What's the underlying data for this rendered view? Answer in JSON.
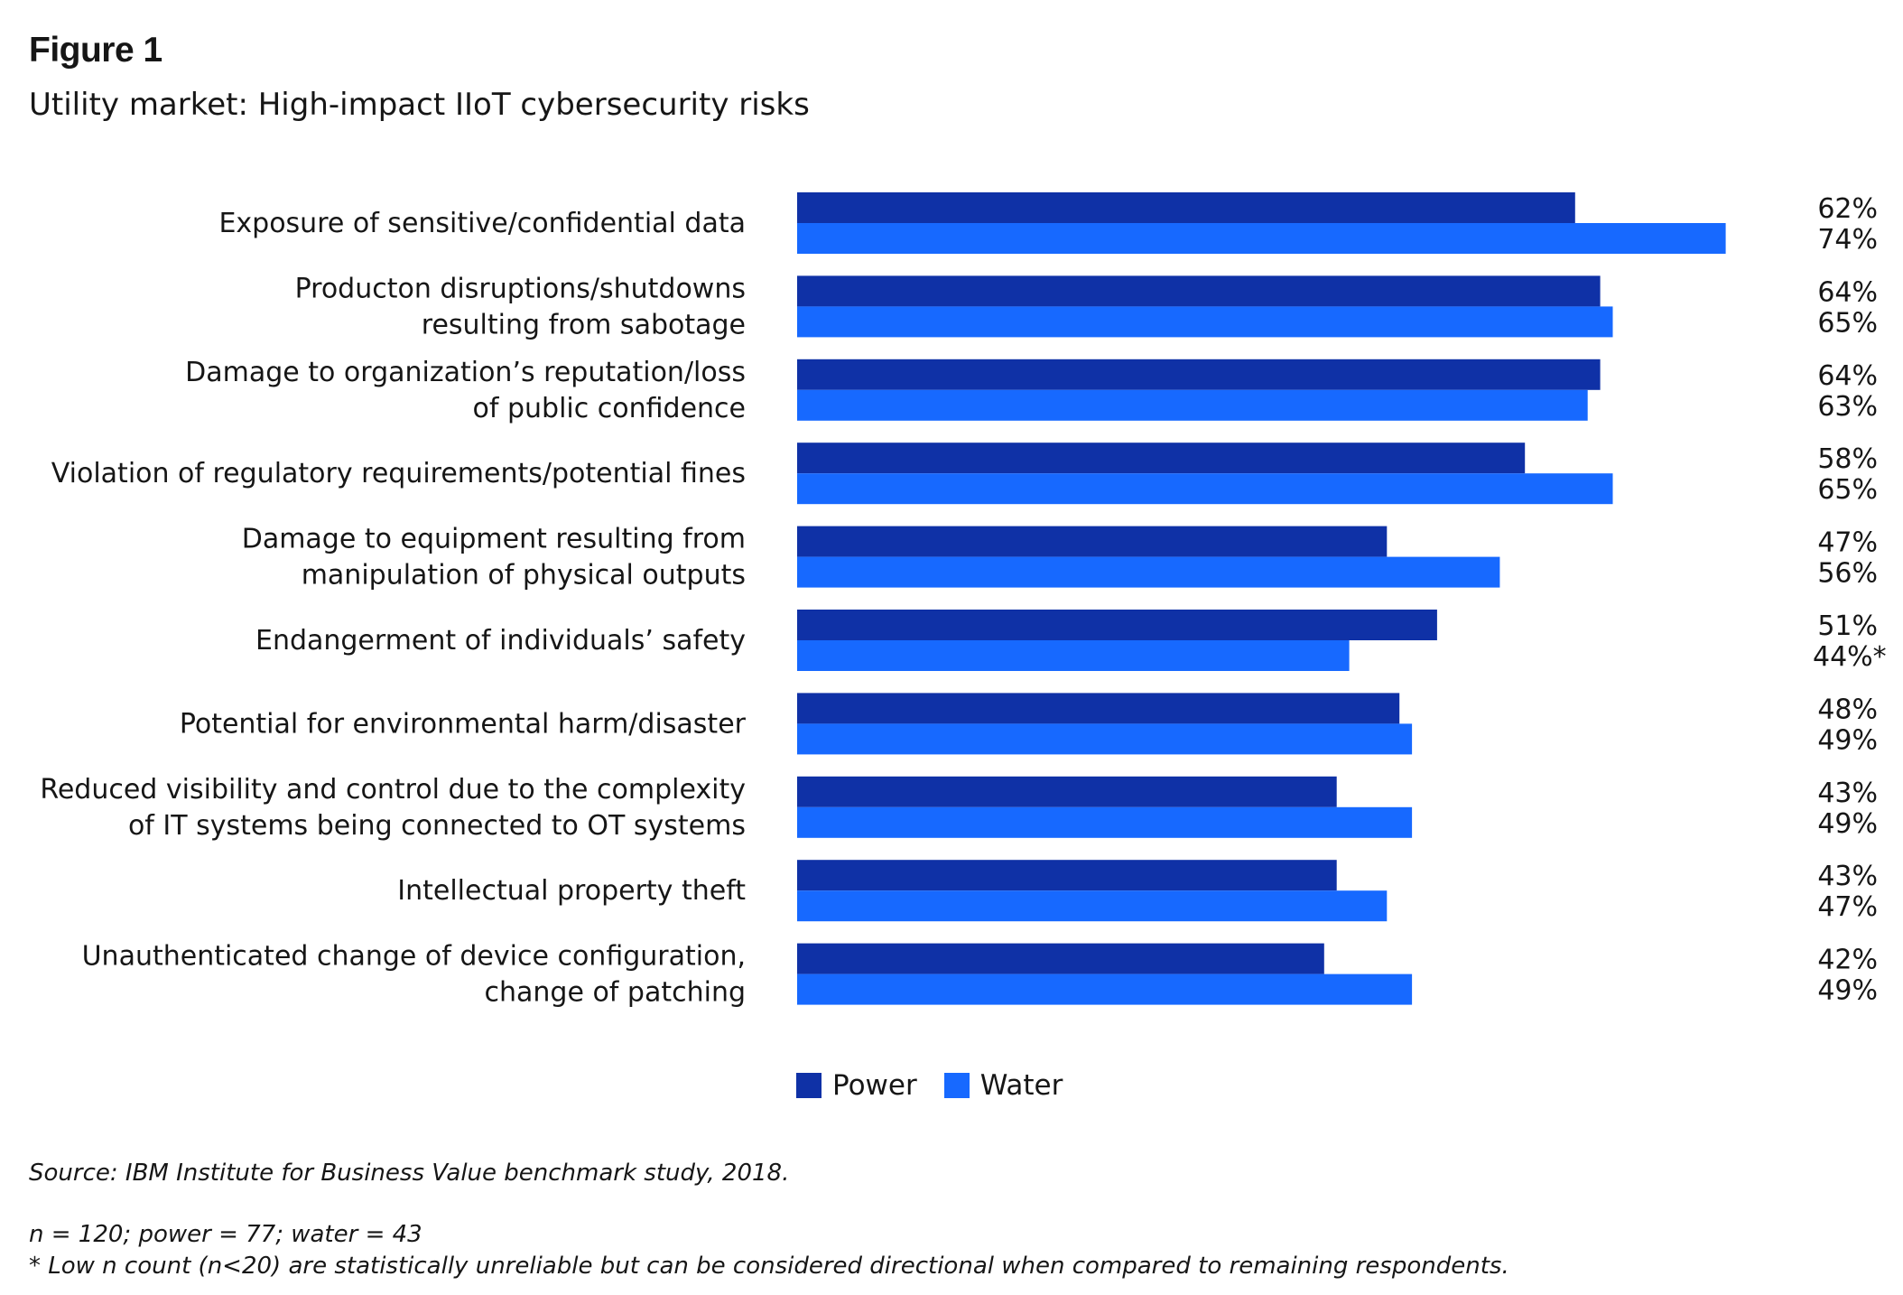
{
  "figure_label": "Figure 1",
  "subtitle": "Utility market: High-impact IIoT cybersecurity risks",
  "colors": {
    "power": "#0f31a6",
    "water": "#1769ff"
  },
  "chart_data": {
    "type": "bar",
    "orientation": "horizontal",
    "title": "Utility market: High-impact IIoT cybersecurity risks",
    "categories": [
      [
        "Exposure of sensitive/confidential data"
      ],
      [
        "Producton disruptions/shutdowns",
        "resulting from sabotage"
      ],
      [
        "Damage to organization’s reputation/loss",
        "of public confidence"
      ],
      [
        "Violation of regulatory requirements/potential fines"
      ],
      [
        "Damage to equipment resulting from",
        "manipulation of physical outputs"
      ],
      [
        "Endangerment of individuals’ safety"
      ],
      [
        "Potential for environmental harm/disaster"
      ],
      [
        "Reduced visibility and control due to the complexity",
        "of IT systems being connected to OT systems"
      ],
      [
        "Intellectual property theft"
      ],
      [
        "Unauthenticated change of device configuration,",
        "change of patching"
      ]
    ],
    "series": [
      {
        "name": "Power",
        "values": [
          62,
          64,
          64,
          58,
          47,
          51,
          48,
          43,
          43,
          42
        ],
        "labels": [
          "62%",
          "64%",
          "64%",
          "58%",
          "47%",
          "51%",
          "48%",
          "43%",
          "43%",
          "42%"
        ]
      },
      {
        "name": "Water",
        "values": [
          74,
          65,
          63,
          65,
          56,
          44,
          49,
          49,
          47,
          49
        ],
        "labels": [
          "74%",
          "65%",
          "63%",
          "65%",
          "56%",
          "44%*",
          "49%",
          "49%",
          "47%",
          "49%"
        ]
      }
    ],
    "xlim": [
      0,
      100
    ],
    "grid": false,
    "legend_position": "bottom"
  },
  "legend": [
    {
      "label": "Power"
    },
    {
      "label": "Water"
    }
  ],
  "source": "Source: IBM Institute for Business Value benchmark study, 2018.",
  "notes": [
    "n = 120; power = 77; water = 43",
    "* Low n count (n<20) are statistically unreliable but can be considered directional when compared to remaining respondents."
  ]
}
